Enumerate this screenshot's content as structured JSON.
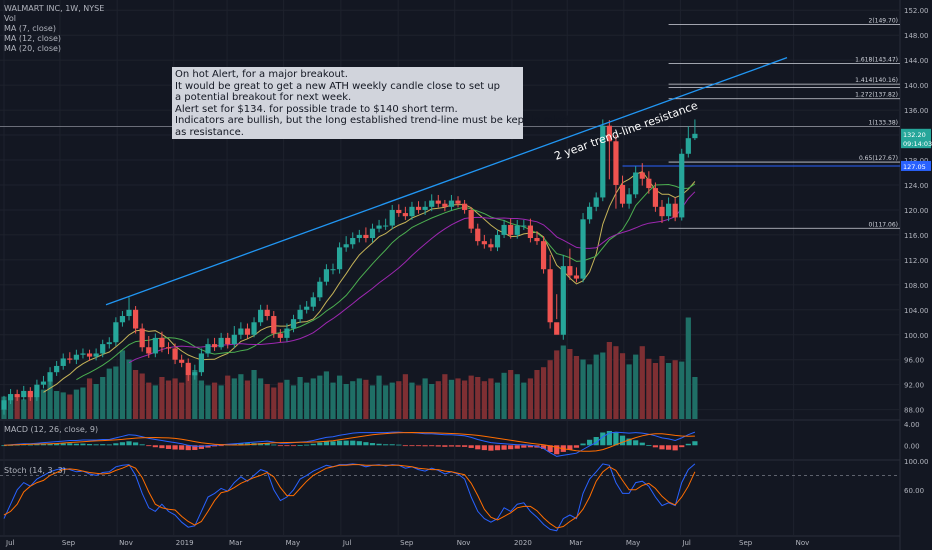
{
  "legend": {
    "symbol": "WALMART INC, 1W, NYSE",
    "vol": "Vol",
    "ma7": "MA (7, close)",
    "ma12": "MA (12, close)",
    "ma20": "MA (20, close)"
  },
  "note": {
    "lines": [
      "On hot Alert, for a major breakout.",
      "It would be great to get a new ATH weekly candle close to set up",
      "a potential breakout for next week.",
      "Alert set for $134. for possible trade to $140 short term.",
      "Indicators are bullish, but the long established trend-line must be kept in mind",
      "as resistance."
    ]
  },
  "trendline_label": "2 year trend-line resistance",
  "macd_label": "MACD (12, 26, close, 9)",
  "stoch_label": "Stoch (14, 3, 3)",
  "colors": {
    "up": "#26a69a",
    "down": "#ef5350",
    "vol_up": "#1f6f66",
    "vol_down": "#7e2f33",
    "trend": "#2196f3",
    "ma7": "#c5b358",
    "ma12": "#4caf50",
    "ma20": "#9c27b0",
    "macd": "#2962ff",
    "signal": "#ff6d00",
    "stoch_k": "#2962ff",
    "stoch_d": "#ff6d00",
    "bg": "#131722",
    "grid": "#1e222d",
    "text": "#b2b5be"
  },
  "chart_data": {
    "type": "candlestick",
    "title": "WALMART INC, 1W, NYSE",
    "y_axis": {
      "ylim": [
        86.5,
        153
      ],
      "ticks": [
        "152.00",
        "148.00",
        "144.00",
        "140.00",
        "136.00",
        "132.00",
        "128.00",
        "124.00",
        "120.00",
        "116.00",
        "112.00",
        "108.00",
        "104.00",
        "100.00",
        "96.00",
        "92.00",
        "88.00"
      ]
    },
    "x_axis": {
      "ticks": [
        {
          "label": "Jul",
          "week": 0
        },
        {
          "label": "Sep",
          "week": 8.5
        },
        {
          "label": "Nov",
          "week": 17.2
        },
        {
          "label": "2019",
          "week": 25.8
        },
        {
          "label": "Mar",
          "week": 33.9
        },
        {
          "label": "May",
          "week": 42.5
        },
        {
          "label": "Jul",
          "week": 51.2
        },
        {
          "label": "Sep",
          "week": 59.9
        },
        {
          "label": "Nov",
          "week": 68.5
        },
        {
          "label": "2020",
          "week": 77.2
        },
        {
          "label": "Mar",
          "week": 85.6
        },
        {
          "label": "May",
          "week": 94.2
        },
        {
          "label": "Jul",
          "week": 102.8
        },
        {
          "label": "Sep",
          "week": 111.4
        },
        {
          "label": "Nov",
          "week": 120
        }
      ]
    },
    "price_labels": [
      {
        "text": "132.20",
        "value": 132.2,
        "color": "#26a69a"
      },
      {
        "text": "09:14:03",
        "value": 130.7,
        "color": "#26a69a"
      },
      {
        "text": "127.05",
        "value": 127.05,
        "color": "#2962ff"
      }
    ],
    "fib_levels": [
      {
        "label": "2(149.70)",
        "value": 149.7
      },
      {
        "label": "1.618(143.47)",
        "value": 143.47
      },
      {
        "label": "1.414(140.16)",
        "value": 140.16
      },
      {
        "label": "1.272(137.82)",
        "value": 137.82
      },
      {
        "label": "1(133.38)",
        "value": 133.38
      },
      {
        "label": "0.65(127.67)",
        "value": 127.67
      },
      {
        "label": "0(117.06)",
        "value": 117.06
      }
    ],
    "extra_fib_line": 139.6,
    "horizontal_lines": [
      133.38,
      127.05
    ],
    "trendline": {
      "x1": 15.5,
      "y1": 104.8,
      "x2": 119,
      "y2": 144.4
    },
    "candles": {
      "open": [
        88,
        89.5,
        90.5,
        90,
        91,
        90,
        92,
        92.5,
        94,
        95,
        96.2,
        96,
        96.8,
        97,
        96.5,
        97,
        98.5,
        98.8,
        102,
        103,
        104,
        101,
        98,
        97,
        99.5,
        98,
        97.8,
        96,
        95.5,
        93.5,
        94,
        97,
        98.5,
        98,
        99.5,
        98.5,
        100,
        101,
        100,
        102,
        104,
        103,
        100.2,
        99.5,
        101,
        102.5,
        104,
        104.5,
        106,
        108.5,
        110.5,
        110.5,
        114,
        114.5,
        115.5,
        116,
        115.5,
        117,
        117.5,
        117.5,
        120,
        119.5,
        119,
        120.5,
        120,
        120.5,
        121.5,
        121,
        120.5,
        121.5,
        121,
        120,
        117,
        115,
        114.5,
        114,
        116,
        117.6,
        116,
        117.5,
        117.5,
        115.5,
        115,
        110.5,
        102,
        100,
        111,
        109.5,
        109,
        118.5,
        120.5,
        122,
        133.5,
        131,
        124,
        121,
        122.5,
        126,
        125,
        123.5,
        120.5,
        119,
        121,
        118.8,
        129,
        131.5
      ],
      "close": [
        89.5,
        90.5,
        90,
        91,
        90,
        92,
        92.5,
        94,
        95,
        96.2,
        96,
        96.8,
        97,
        96.5,
        97,
        98.5,
        98.8,
        102,
        103,
        104,
        101,
        98,
        97,
        99.5,
        98,
        97.8,
        96,
        95.5,
        93.5,
        94,
        97,
        98.5,
        98,
        99.5,
        98.5,
        100,
        101,
        100,
        102,
        104,
        103,
        100.2,
        99.5,
        101,
        102.5,
        104,
        104.5,
        106,
        108.5,
        110.5,
        110.5,
        114,
        114.5,
        115.5,
        116,
        115.5,
        117,
        117.5,
        117.5,
        120,
        119.5,
        119,
        120.5,
        120,
        120.5,
        121.5,
        121,
        120.5,
        121.5,
        121,
        120,
        117,
        115,
        114.5,
        114,
        116,
        117.6,
        116,
        117.5,
        117.5,
        115.5,
        115,
        110.5,
        102,
        100,
        111,
        109.5,
        109,
        118.5,
        120.5,
        122,
        133.5,
        131,
        124,
        121,
        122.5,
        126,
        125,
        123.5,
        120.5,
        119,
        121,
        118.8,
        129,
        131.5,
        132.2
      ],
      "high": [
        90.2,
        91.3,
        91.2,
        91.8,
        91.6,
        92.8,
        93.4,
        94.8,
        95.8,
        97,
        97.2,
        97.6,
        97.8,
        97.6,
        97.8,
        99.2,
        99.6,
        102.8,
        103.8,
        106,
        104.6,
        101.8,
        99.8,
        100.2,
        100.5,
        98.8,
        98.6,
        96.8,
        96.2,
        95.2,
        97.8,
        99.4,
        99.5,
        100.3,
        100.3,
        101.4,
        102,
        101.8,
        102.8,
        104.8,
        104.8,
        103.8,
        100.9,
        101.8,
        103.2,
        104.8,
        105.4,
        106.8,
        109.2,
        111.3,
        111.4,
        114.8,
        115.8,
        116.4,
        116.8,
        117.2,
        117.8,
        118.4,
        118.6,
        120.8,
        120.9,
        120.5,
        121.3,
        121.4,
        121.4,
        122.5,
        122.4,
        121.6,
        122.4,
        122.2,
        121.6,
        120.4,
        117.8,
        116,
        115.4,
        116.8,
        118.4,
        118.6,
        118.4,
        118.4,
        118.6,
        116.6,
        115.8,
        112.8,
        106.5,
        112.8,
        113.8,
        110.8,
        119.5,
        121.2,
        122.8,
        134.5,
        134.4,
        132,
        125.5,
        123.5,
        127,
        127.5,
        126.2,
        124.4,
        121.6,
        122,
        122,
        129.8,
        133.4,
        134.5
      ],
      "low": [
        87.2,
        88.9,
        89.4,
        89.5,
        89.4,
        89.4,
        91.4,
        91.9,
        93.4,
        94.4,
        95.4,
        95.3,
        96.2,
        95.8,
        95.9,
        96.4,
        97.8,
        98.2,
        101.3,
        102.3,
        100.2,
        97.3,
        96.3,
        96.4,
        97.2,
        96.9,
        95.3,
        94.8,
        92.6,
        92.8,
        93.4,
        96.4,
        97.4,
        97.6,
        97.8,
        97.9,
        99.3,
        99.4,
        99.6,
        101.4,
        102.3,
        99.5,
        98.8,
        98.9,
        100.4,
        101.9,
        103.4,
        103.8,
        105.4,
        107.9,
        109.7,
        109.8,
        113.3,
        113.8,
        114.8,
        114.8,
        114.8,
        116.4,
        116.8,
        116.9,
        118.9,
        118.4,
        118.4,
        119.4,
        119.2,
        119.8,
        120.4,
        119.8,
        119.9,
        120.4,
        119.4,
        116.3,
        114.3,
        113.8,
        113.4,
        113.4,
        115.5,
        115.4,
        115.4,
        116.8,
        114.8,
        114.4,
        109.8,
        101,
        102.5,
        99.2,
        108.8,
        108.4,
        108.4,
        117.8,
        119.8,
        121.4,
        124.9,
        120.2,
        120.4,
        120.2,
        121.9,
        123.9,
        122.6,
        119.7,
        117.9,
        118.2,
        118.2,
        118.3,
        128.4,
        131.2
      ]
    },
    "volume": [
      32,
      30,
      34,
      28,
      36,
      38,
      42,
      55,
      40,
      38,
      35,
      42,
      45,
      58,
      50,
      60,
      72,
      75,
      98,
      85,
      70,
      65,
      52,
      48,
      60,
      55,
      58,
      52,
      62,
      70,
      55,
      48,
      52,
      48,
      62,
      58,
      64,
      55,
      70,
      58,
      50,
      45,
      52,
      56,
      48,
      60,
      52,
      58,
      62,
      68,
      52,
      62,
      50,
      54,
      58,
      56,
      48,
      62,
      48,
      52,
      54,
      64,
      52,
      48,
      58,
      50,
      54,
      64,
      56,
      58,
      55,
      62,
      60,
      54,
      58,
      52,
      66,
      70,
      64,
      52,
      58,
      70,
      74,
      84,
      98,
      105,
      100,
      90,
      85,
      78,
      92,
      95,
      110,
      104,
      94,
      78,
      92,
      104,
      86,
      80,
      90,
      80,
      84,
      82,
      145,
      60
    ],
    "macd": {
      "macd": [
        0,
        0.1,
        0.2,
        0.3,
        0.3,
        0.4,
        0.5,
        0.6,
        0.7,
        0.8,
        0.9,
        0.9,
        1,
        1,
        1,
        1.1,
        1.1,
        1.4,
        1.7,
        2,
        1.9,
        1.6,
        1.3,
        1.1,
        0.9,
        0.7,
        0.5,
        0.3,
        0,
        -0.2,
        -0.2,
        -0.1,
        0,
        0.1,
        0.2,
        0.3,
        0.4,
        0.5,
        0.6,
        0.7,
        0.8,
        0.6,
        0.4,
        0.4,
        0.5,
        0.6,
        0.7,
        0.9,
        1.2,
        1.5,
        1.6,
        1.9,
        2.1,
        2.3,
        2.4,
        2.4,
        2.4,
        2.4,
        2.4,
        2.5,
        2.5,
        2.4,
        2.4,
        2.3,
        2.2,
        2.2,
        2.1,
        2,
        2,
        1.9,
        1.8,
        1.5,
        1.1,
        0.8,
        0.5,
        0.4,
        0.3,
        0.2,
        0.1,
        0.1,
        0,
        -0.2,
        -0.6,
        -1.4,
        -2.1,
        -1.9,
        -1.7,
        -1.5,
        -0.8,
        -0.1,
        0.5,
        1.6,
        2.3,
        2.5,
        2.4,
        2.3,
        2.4,
        2.3,
        2.1,
        1.8,
        1.4,
        1.2,
        0.9,
        1.4,
        2,
        2.5
      ]
    },
    "stoch": {
      "k": [
        20,
        40,
        60,
        70,
        65,
        75,
        80,
        85,
        88,
        90,
        88,
        85,
        86,
        82,
        80,
        84,
        85,
        92,
        94,
        95,
        80,
        55,
        35,
        30,
        40,
        30,
        25,
        15,
        8,
        10,
        30,
        50,
        55,
        62,
        58,
        70,
        78,
        72,
        80,
        88,
        85,
        60,
        45,
        50,
        60,
        75,
        80,
        86,
        90,
        94,
        92,
        95,
        95,
        96,
        95,
        92,
        94,
        95,
        93,
        95,
        94,
        90,
        92,
        88,
        86,
        90,
        87,
        82,
        85,
        82,
        75,
        50,
        30,
        20,
        15,
        20,
        35,
        30,
        40,
        42,
        30,
        22,
        12,
        5,
        3,
        20,
        25,
        20,
        55,
        75,
        85,
        96,
        94,
        70,
        55,
        55,
        70,
        72,
        65,
        50,
        38,
        42,
        38,
        70,
        88,
        96
      ],
      "d": [
        25,
        30,
        40,
        57,
        65,
        70,
        73,
        80,
        84,
        88,
        89,
        88,
        86,
        84,
        83,
        82,
        83,
        87,
        90,
        94,
        90,
        77,
        57,
        40,
        35,
        33,
        32,
        23,
        16,
        11,
        16,
        30,
        45,
        56,
        58,
        63,
        69,
        73,
        77,
        80,
        84,
        78,
        63,
        52,
        52,
        62,
        72,
        80,
        85,
        90,
        92,
        94,
        94,
        95,
        95,
        94,
        94,
        94,
        94,
        94,
        94,
        93,
        92,
        90,
        89,
        88,
        88,
        86,
        85,
        83,
        81,
        69,
        52,
        33,
        22,
        18,
        23,
        28,
        35,
        37,
        37,
        31,
        21,
        13,
        7,
        9,
        16,
        22,
        33,
        50,
        72,
        85,
        92,
        87,
        73,
        60,
        60,
        66,
        69,
        62,
        51,
        43,
        39,
        50,
        65,
        85
      ]
    }
  }
}
